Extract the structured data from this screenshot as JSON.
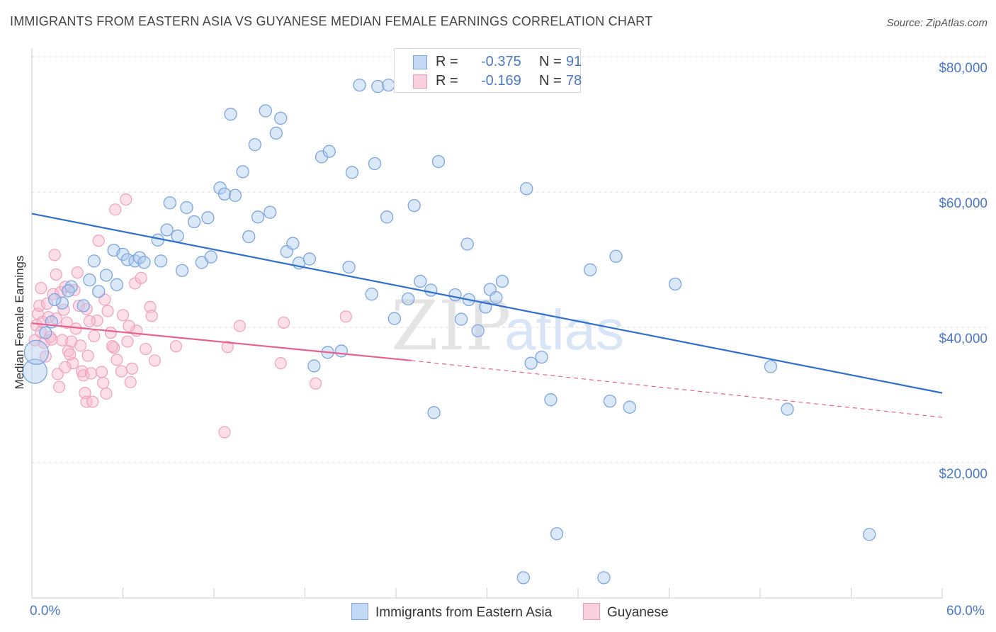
{
  "header": {
    "title": "IMMIGRANTS FROM EASTERN ASIA VS GUYANESE MEDIAN FEMALE EARNINGS CORRELATION CHART",
    "source": "Source: ZipAtlas.com"
  },
  "watermark": {
    "part1": "ZIP",
    "part2": "atlas"
  },
  "stats": {
    "blue": {
      "r_label": "R =",
      "r_value": "-0.375",
      "n_label": "N =",
      "n_value": "91"
    },
    "pink": {
      "r_label": "R =",
      "r_value": "-0.169",
      "n_label": "N =",
      "n_value": "78"
    }
  },
  "legend": {
    "blue_label": "Immigrants from Eastern Asia",
    "pink_label": "Guyanese"
  },
  "axes": {
    "y_title": "Median Female Earnings",
    "y_ticks": [
      "$80,000",
      "$60,000",
      "$40,000",
      "$20,000"
    ],
    "x_min_label": "0.0%",
    "x_max_label": "60.0%"
  },
  "colors": {
    "blue": "#6a9de0",
    "blue_line": "#2f6fd0",
    "pink": "#f090b0",
    "pink_line": "#e8608f",
    "tick_text": "#4a78c8"
  },
  "chart_data": {
    "type": "scatter",
    "xlabel": "",
    "ylabel": "Median Female Earnings",
    "xlim": [
      0,
      60
    ],
    "ylim": [
      0,
      80000
    ],
    "x_unit": "%",
    "grid": true,
    "series": [
      {
        "name": "Immigrants from Eastern Asia",
        "color": "#6a9de0",
        "trend": {
          "x": [
            0,
            60
          ],
          "y": [
            56800,
            30300
          ]
        },
        "points": [
          [
            0.2,
            33500
          ],
          [
            0.3,
            36300
          ],
          [
            1.3,
            40800
          ],
          [
            2.0,
            43600
          ],
          [
            2.6,
            46000
          ],
          [
            3.4,
            43200
          ],
          [
            3.8,
            47000
          ],
          [
            4.1,
            49800
          ],
          [
            4.4,
            45300
          ],
          [
            4.9,
            47700
          ],
          [
            5.4,
            51400
          ],
          [
            5.6,
            46300
          ],
          [
            6.0,
            50800
          ],
          [
            6.3,
            50000
          ],
          [
            6.8,
            49800
          ],
          [
            7.1,
            50300
          ],
          [
            7.4,
            49600
          ],
          [
            8.3,
            52900
          ],
          [
            8.5,
            49800
          ],
          [
            8.9,
            54400
          ],
          [
            9.1,
            58400
          ],
          [
            9.6,
            53500
          ],
          [
            9.9,
            48400
          ],
          [
            10.2,
            57700
          ],
          [
            10.7,
            55600
          ],
          [
            11.2,
            49600
          ],
          [
            11.6,
            56200
          ],
          [
            11.8,
            50400
          ],
          [
            12.4,
            60600
          ],
          [
            12.7,
            59700
          ],
          [
            13.1,
            71500
          ],
          [
            13.4,
            59500
          ],
          [
            13.9,
            63000
          ],
          [
            14.3,
            53400
          ],
          [
            14.7,
            67000
          ],
          [
            14.9,
            56300
          ],
          [
            15.4,
            72000
          ],
          [
            15.7,
            57000
          ],
          [
            16.1,
            68700
          ],
          [
            16.4,
            70900
          ],
          [
            16.8,
            51200
          ],
          [
            17.2,
            52400
          ],
          [
            17.6,
            49500
          ],
          [
            18.3,
            50100
          ],
          [
            18.6,
            34300
          ],
          [
            19.1,
            65200
          ],
          [
            19.6,
            66000
          ],
          [
            19.5,
            36300
          ],
          [
            20.4,
            36500
          ],
          [
            20.9,
            48900
          ],
          [
            21.1,
            62900
          ],
          [
            21.6,
            75800
          ],
          [
            22.4,
            44900
          ],
          [
            22.6,
            64200
          ],
          [
            22.8,
            75600
          ],
          [
            23.5,
            75800
          ],
          [
            23.4,
            56300
          ],
          [
            23.9,
            41300
          ],
          [
            24.8,
            44200
          ],
          [
            25.2,
            58000
          ],
          [
            25.6,
            46800
          ],
          [
            26.3,
            45500
          ],
          [
            26.5,
            27400
          ],
          [
            26.8,
            64500
          ],
          [
            27.9,
            44800
          ],
          [
            28.3,
            41200
          ],
          [
            28.7,
            52300
          ],
          [
            28.8,
            44100
          ],
          [
            29.4,
            39500
          ],
          [
            29.9,
            43000
          ],
          [
            30.2,
            45600
          ],
          [
            30.6,
            44400
          ],
          [
            31.0,
            46800
          ],
          [
            32.6,
            60500
          ],
          [
            32.4,
            3000
          ],
          [
            32.9,
            34700
          ],
          [
            33.6,
            35600
          ],
          [
            34.2,
            29300
          ],
          [
            34.6,
            9500
          ],
          [
            36.8,
            48500
          ],
          [
            37.7,
            3000
          ],
          [
            38.1,
            29100
          ],
          [
            38.5,
            50500
          ],
          [
            39.4,
            28200
          ],
          [
            42.4,
            46400
          ],
          [
            48.7,
            34200
          ],
          [
            49.8,
            27900
          ],
          [
            55.2,
            9400
          ],
          [
            0.9,
            39200
          ],
          [
            1.5,
            44100
          ],
          [
            2.4,
            45400
          ]
        ]
      },
      {
        "name": "Guyanese",
        "color": "#f090b0",
        "trend": {
          "x": [
            0,
            25
          ],
          "y": [
            40600,
            35100
          ]
        },
        "trend_dashed": {
          "x": [
            25,
            60
          ],
          "y": [
            35100,
            26700
          ]
        },
        "points": [
          [
            0.2,
            38100
          ],
          [
            0.3,
            40300
          ],
          [
            0.4,
            42000
          ],
          [
            0.5,
            43200
          ],
          [
            0.6,
            39300
          ],
          [
            0.8,
            37700
          ],
          [
            0.9,
            35700
          ],
          [
            1.1,
            41500
          ],
          [
            1.2,
            38600
          ],
          [
            1.4,
            44900
          ],
          [
            1.5,
            50700
          ],
          [
            1.6,
            47800
          ],
          [
            1.7,
            33100
          ],
          [
            1.8,
            31200
          ],
          [
            1.9,
            45200
          ],
          [
            2.0,
            38100
          ],
          [
            2.1,
            42600
          ],
          [
            2.2,
            46000
          ],
          [
            2.3,
            40700
          ],
          [
            2.4,
            36500
          ],
          [
            2.6,
            37900
          ],
          [
            2.7,
            34700
          ],
          [
            2.8,
            45500
          ],
          [
            3.0,
            48100
          ],
          [
            3.1,
            43200
          ],
          [
            3.2,
            37300
          ],
          [
            3.3,
            33500
          ],
          [
            3.4,
            32900
          ],
          [
            3.5,
            30300
          ],
          [
            3.6,
            29000
          ],
          [
            3.7,
            35800
          ],
          [
            3.9,
            33200
          ],
          [
            4.0,
            29000
          ],
          [
            4.1,
            38700
          ],
          [
            4.3,
            41000
          ],
          [
            4.4,
            52800
          ],
          [
            4.6,
            33400
          ],
          [
            4.8,
            44100
          ],
          [
            5.0,
            42400
          ],
          [
            5.2,
            39200
          ],
          [
            5.4,
            37000
          ],
          [
            5.5,
            57400
          ],
          [
            5.6,
            35200
          ],
          [
            5.9,
            33500
          ],
          [
            6.0,
            41800
          ],
          [
            6.2,
            58900
          ],
          [
            6.3,
            37900
          ],
          [
            6.5,
            31900
          ],
          [
            6.6,
            33900
          ],
          [
            6.8,
            46500
          ],
          [
            6.9,
            39500
          ],
          [
            7.2,
            47300
          ],
          [
            7.8,
            43000
          ],
          [
            7.9,
            41700
          ],
          [
            8.1,
            35100
          ],
          [
            9.5,
            37200
          ],
          [
            12.7,
            24500
          ],
          [
            12.9,
            37100
          ],
          [
            13.7,
            40200
          ],
          [
            16.4,
            34700
          ],
          [
            16.6,
            40700
          ],
          [
            18.7,
            31700
          ],
          [
            20.7,
            41600
          ],
          [
            0.7,
            40800
          ],
          [
            1.0,
            43500
          ],
          [
            1.3,
            38200
          ],
          [
            2.5,
            36000
          ],
          [
            2.9,
            39800
          ],
          [
            3.8,
            40900
          ],
          [
            5.3,
            37200
          ],
          [
            4.7,
            31800
          ],
          [
            6.4,
            40200
          ],
          [
            7.5,
            36800
          ],
          [
            0.6,
            45800
          ],
          [
            1.6,
            41300
          ],
          [
            2.2,
            34100
          ],
          [
            3.6,
            42700
          ],
          [
            4.9,
            30200
          ]
        ]
      }
    ]
  }
}
